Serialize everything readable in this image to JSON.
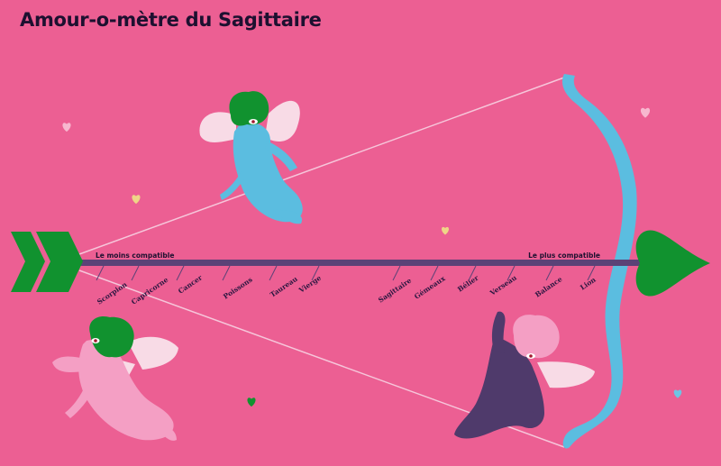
{
  "title": "Amour-o-mètre du Sagittaire",
  "scale": {
    "min_label": "Le moins compatible",
    "max_label": "Le plus compatible",
    "signs": [
      "Scorpion",
      "Capricorne",
      "Cancer",
      "Poissons",
      "Taureau",
      "Vierge",
      "Sagittaire",
      "Gémeaux",
      "Bélier",
      "Verseau",
      "Balance",
      "Lion"
    ]
  },
  "colors": {
    "background": "#ec5f93",
    "arrow_shaft": "#5b4277",
    "fletching": "#11922f",
    "bow": "#5bbde0",
    "cupid_blue": "#5bbde0",
    "cupid_pink": "#f49fc4",
    "cupid_purple": "#4f3a6b",
    "hair_green": "#11922f",
    "hair_pink": "#f49fc4",
    "wings": "#f8dbe6"
  },
  "icons": [
    "heart-icon",
    "arrow-icon",
    "bow-icon",
    "cupid-icon"
  ]
}
